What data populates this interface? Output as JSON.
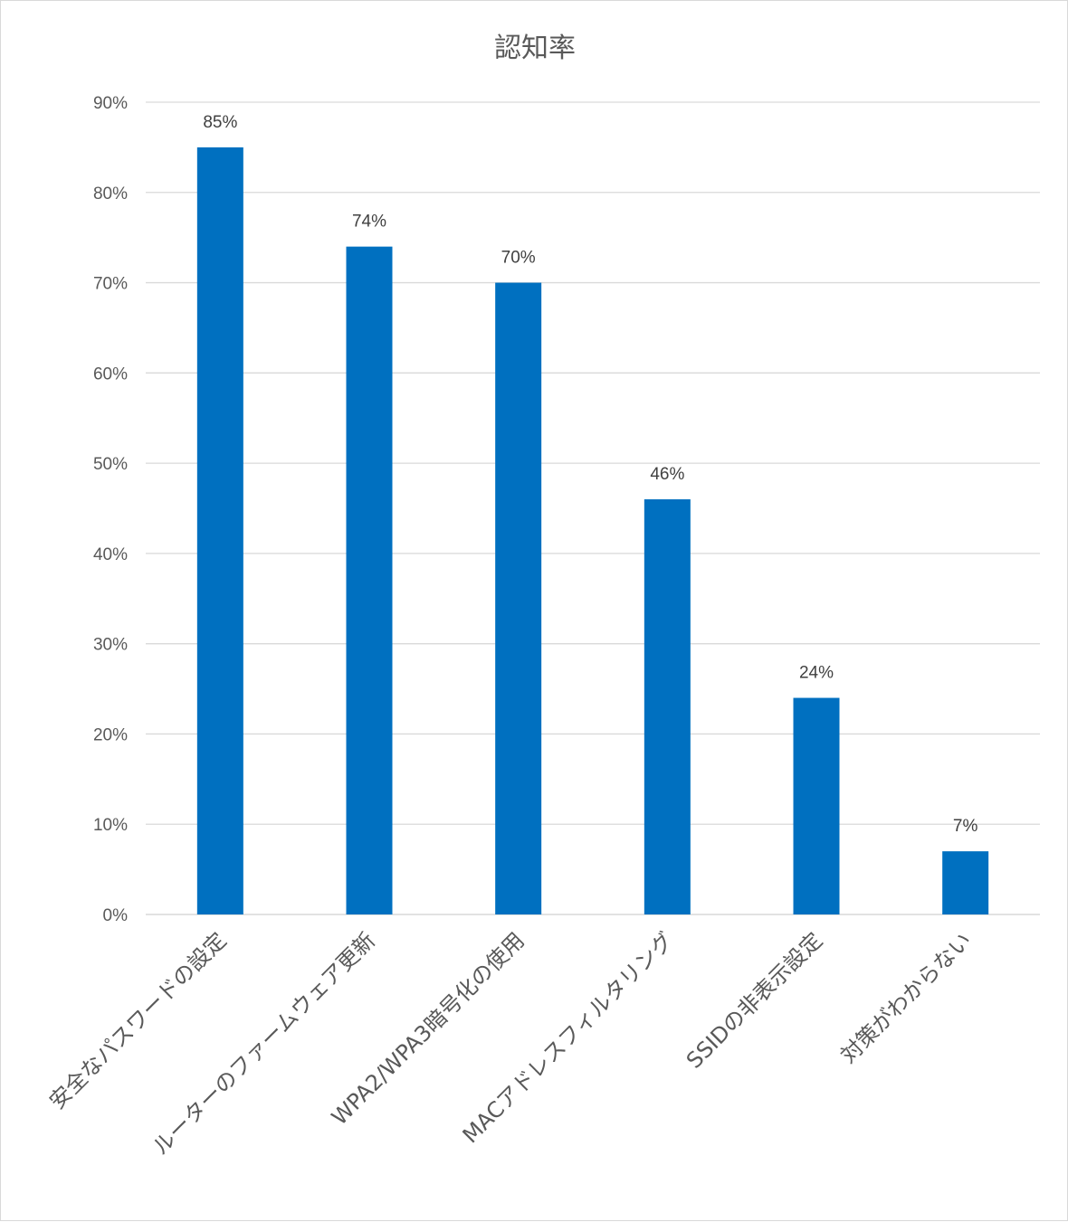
{
  "chart_data": {
    "type": "bar",
    "title": "認知率",
    "categories": [
      "安全なパスワードの設定",
      "ルーターのファームウェア更新",
      "WPA2/WPA3暗号化の使用",
      "MACアドレスフィルタリング",
      "SSIDの非表示設定",
      "対策がわからない"
    ],
    "values": [
      85,
      74,
      70,
      46,
      24,
      7
    ],
    "data_labels": [
      "85%",
      "74%",
      "70%",
      "46%",
      "24%",
      "7%"
    ],
    "y_ticks": [
      "0%",
      "10%",
      "20%",
      "30%",
      "40%",
      "50%",
      "60%",
      "70%",
      "80%",
      "90%"
    ],
    "ylim": [
      0,
      90
    ],
    "ytick_step": 10,
    "grid": true,
    "bar_color": "#0070C0",
    "legend": "none"
  }
}
